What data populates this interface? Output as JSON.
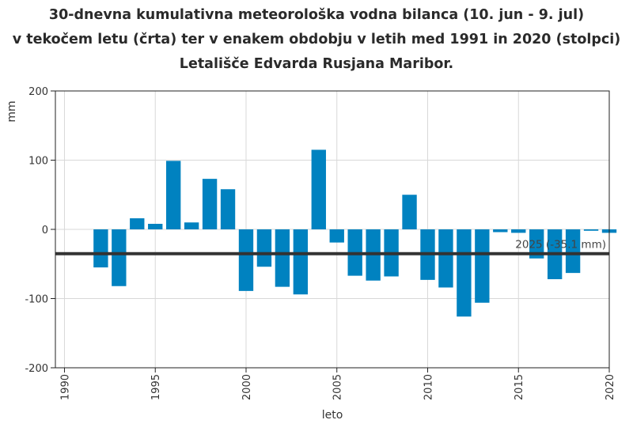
{
  "chart_data": {
    "type": "bar",
    "title_lines": [
      "30-dnevna kumulativna meteorološka vodna bilanca (10. jun - 9. jul)",
      "v tekočem letu (črta) ter v enakem obdobju v letih med 1991 in 2020 (stolpci)",
      "Letališče Edvarda Rusjana Maribor."
    ],
    "xlabel": "leto",
    "ylabel": "mm",
    "xlim": [
      1989.5,
      2020
    ],
    "ylim": [
      -200,
      200
    ],
    "x_ticks": [
      1990,
      1995,
      2000,
      2005,
      2010,
      2015,
      2020
    ],
    "y_ticks": [
      -200,
      -100,
      0,
      100,
      200
    ],
    "grid": true,
    "bar_color": "#0082c0",
    "line_color": "#333333",
    "series": [
      {
        "years": [
          1991,
          1992,
          1993,
          1994,
          1995,
          1996,
          1997,
          1998,
          1999,
          2000,
          2001,
          2002,
          2003,
          2004,
          2005,
          2006,
          2007,
          2008,
          2009,
          2010,
          2011,
          2012,
          2013,
          2014,
          2015,
          2016,
          2017,
          2018,
          2019,
          2020
        ],
        "values": [
          0,
          -55,
          -82,
          16,
          8,
          99,
          10,
          73,
          58,
          -89,
          -54,
          -83,
          -94,
          115,
          -19,
          -67,
          -74,
          -68,
          50,
          -73,
          -84,
          -126,
          -106,
          -4,
          -5,
          -42,
          -72,
          -63,
          -2,
          -5
        ]
      }
    ],
    "current_year_line": {
      "value": -35.1,
      "label": "2025 (-35.1 mm)"
    }
  }
}
